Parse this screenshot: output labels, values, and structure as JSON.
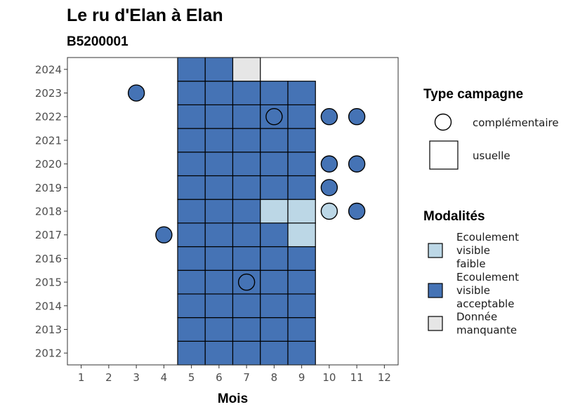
{
  "chart_data": {
    "type": "heatmap",
    "title": "Le ru d'Elan à Elan",
    "subtitle": "B5200001",
    "xlabel": "Mois",
    "ylabel": "",
    "x_ticks": [
      1,
      2,
      3,
      4,
      5,
      6,
      7,
      8,
      9,
      10,
      11,
      12
    ],
    "y_ticks": [
      2012,
      2013,
      2014,
      2015,
      2016,
      2017,
      2018,
      2019,
      2020,
      2021,
      2022,
      2023,
      2024
    ],
    "xlim": [
      0.5,
      12.5
    ],
    "ylim": [
      2011.5,
      2024.5
    ],
    "grid": false,
    "legend_position": "right",
    "colors": {
      "Ecoulement visible faible": "#bcd7e6",
      "Ecoulement visible acceptable": "#4573b5",
      "Donnée manquante": "#e6e6e6"
    },
    "legend": {
      "type_title": "Type campagne",
      "type_items": [
        {
          "label": "complémentaire",
          "shape": "circle"
        },
        {
          "label": "usuelle",
          "shape": "square"
        }
      ],
      "mod_title": "Modalités",
      "mod_items": [
        {
          "key": "Ecoulement visible faible",
          "lines": [
            "Ecoulement",
            "visible",
            "faible"
          ]
        },
        {
          "key": "Ecoulement visible acceptable",
          "lines": [
            "Ecoulement",
            "visible",
            "acceptable"
          ]
        },
        {
          "key": "Donnée manquante",
          "lines": [
            "Donnée",
            "manquante"
          ]
        }
      ]
    },
    "usuelle": [
      {
        "year": 2012,
        "month": 5,
        "modalite": "Ecoulement visible acceptable"
      },
      {
        "year": 2012,
        "month": 6,
        "modalite": "Ecoulement visible acceptable"
      },
      {
        "year": 2012,
        "month": 7,
        "modalite": "Ecoulement visible acceptable"
      },
      {
        "year": 2012,
        "month": 8,
        "modalite": "Ecoulement visible acceptable"
      },
      {
        "year": 2012,
        "month": 9,
        "modalite": "Ecoulement visible acceptable"
      },
      {
        "year": 2013,
        "month": 5,
        "modalite": "Ecoulement visible acceptable"
      },
      {
        "year": 2013,
        "month": 6,
        "modalite": "Ecoulement visible acceptable"
      },
      {
        "year": 2013,
        "month": 7,
        "modalite": "Ecoulement visible acceptable"
      },
      {
        "year": 2013,
        "month": 8,
        "modalite": "Ecoulement visible acceptable"
      },
      {
        "year": 2013,
        "month": 9,
        "modalite": "Ecoulement visible acceptable"
      },
      {
        "year": 2014,
        "month": 5,
        "modalite": "Ecoulement visible acceptable"
      },
      {
        "year": 2014,
        "month": 6,
        "modalite": "Ecoulement visible acceptable"
      },
      {
        "year": 2014,
        "month": 7,
        "modalite": "Ecoulement visible acceptable"
      },
      {
        "year": 2014,
        "month": 8,
        "modalite": "Ecoulement visible acceptable"
      },
      {
        "year": 2014,
        "month": 9,
        "modalite": "Ecoulement visible acceptable"
      },
      {
        "year": 2015,
        "month": 5,
        "modalite": "Ecoulement visible acceptable"
      },
      {
        "year": 2015,
        "month": 6,
        "modalite": "Ecoulement visible acceptable"
      },
      {
        "year": 2015,
        "month": 7,
        "modalite": "Ecoulement visible acceptable"
      },
      {
        "year": 2015,
        "month": 8,
        "modalite": "Ecoulement visible acceptable"
      },
      {
        "year": 2015,
        "month": 9,
        "modalite": "Ecoulement visible acceptable"
      },
      {
        "year": 2016,
        "month": 5,
        "modalite": "Ecoulement visible acceptable"
      },
      {
        "year": 2016,
        "month": 6,
        "modalite": "Ecoulement visible acceptable"
      },
      {
        "year": 2016,
        "month": 7,
        "modalite": "Ecoulement visible acceptable"
      },
      {
        "year": 2016,
        "month": 8,
        "modalite": "Ecoulement visible acceptable"
      },
      {
        "year": 2016,
        "month": 9,
        "modalite": "Ecoulement visible acceptable"
      },
      {
        "year": 2017,
        "month": 5,
        "modalite": "Ecoulement visible acceptable"
      },
      {
        "year": 2017,
        "month": 6,
        "modalite": "Ecoulement visible acceptable"
      },
      {
        "year": 2017,
        "month": 7,
        "modalite": "Ecoulement visible acceptable"
      },
      {
        "year": 2017,
        "month": 8,
        "modalite": "Ecoulement visible acceptable"
      },
      {
        "year": 2017,
        "month": 9,
        "modalite": "Ecoulement visible faible"
      },
      {
        "year": 2018,
        "month": 5,
        "modalite": "Ecoulement visible acceptable"
      },
      {
        "year": 2018,
        "month": 6,
        "modalite": "Ecoulement visible acceptable"
      },
      {
        "year": 2018,
        "month": 7,
        "modalite": "Ecoulement visible acceptable"
      },
      {
        "year": 2018,
        "month": 8,
        "modalite": "Ecoulement visible faible"
      },
      {
        "year": 2018,
        "month": 9,
        "modalite": "Ecoulement visible faible"
      },
      {
        "year": 2019,
        "month": 5,
        "modalite": "Ecoulement visible acceptable"
      },
      {
        "year": 2019,
        "month": 6,
        "modalite": "Ecoulement visible acceptable"
      },
      {
        "year": 2019,
        "month": 7,
        "modalite": "Ecoulement visible acceptable"
      },
      {
        "year": 2019,
        "month": 8,
        "modalite": "Ecoulement visible acceptable"
      },
      {
        "year": 2019,
        "month": 9,
        "modalite": "Ecoulement visible acceptable"
      },
      {
        "year": 2020,
        "month": 5,
        "modalite": "Ecoulement visible acceptable"
      },
      {
        "year": 2020,
        "month": 6,
        "modalite": "Ecoulement visible acceptable"
      },
      {
        "year": 2020,
        "month": 7,
        "modalite": "Ecoulement visible acceptable"
      },
      {
        "year": 2020,
        "month": 8,
        "modalite": "Ecoulement visible acceptable"
      },
      {
        "year": 2020,
        "month": 9,
        "modalite": "Ecoulement visible acceptable"
      },
      {
        "year": 2021,
        "month": 5,
        "modalite": "Ecoulement visible acceptable"
      },
      {
        "year": 2021,
        "month": 6,
        "modalite": "Ecoulement visible acceptable"
      },
      {
        "year": 2021,
        "month": 7,
        "modalite": "Ecoulement visible acceptable"
      },
      {
        "year": 2021,
        "month": 8,
        "modalite": "Ecoulement visible acceptable"
      },
      {
        "year": 2021,
        "month": 9,
        "modalite": "Ecoulement visible acceptable"
      },
      {
        "year": 2022,
        "month": 5,
        "modalite": "Ecoulement visible acceptable"
      },
      {
        "year": 2022,
        "month": 6,
        "modalite": "Ecoulement visible acceptable"
      },
      {
        "year": 2022,
        "month": 7,
        "modalite": "Ecoulement visible acceptable"
      },
      {
        "year": 2022,
        "month": 8,
        "modalite": "Ecoulement visible acceptable"
      },
      {
        "year": 2022,
        "month": 9,
        "modalite": "Ecoulement visible acceptable"
      },
      {
        "year": 2023,
        "month": 5,
        "modalite": "Ecoulement visible acceptable"
      },
      {
        "year": 2023,
        "month": 6,
        "modalite": "Ecoulement visible acceptable"
      },
      {
        "year": 2023,
        "month": 7,
        "modalite": "Ecoulement visible acceptable"
      },
      {
        "year": 2023,
        "month": 8,
        "modalite": "Ecoulement visible acceptable"
      },
      {
        "year": 2023,
        "month": 9,
        "modalite": "Ecoulement visible acceptable"
      },
      {
        "year": 2024,
        "month": 5,
        "modalite": "Ecoulement visible acceptable"
      },
      {
        "year": 2024,
        "month": 6,
        "modalite": "Ecoulement visible acceptable"
      },
      {
        "year": 2024,
        "month": 7,
        "modalite": "Donnée manquante"
      }
    ],
    "complementaire": [
      {
        "year": 2023,
        "month": 3,
        "modalite": "Ecoulement visible acceptable"
      },
      {
        "year": 2022,
        "month": 8,
        "modalite": "Ecoulement visible acceptable"
      },
      {
        "year": 2022,
        "month": 10,
        "modalite": "Ecoulement visible acceptable"
      },
      {
        "year": 2022,
        "month": 11,
        "modalite": "Ecoulement visible acceptable"
      },
      {
        "year": 2020,
        "month": 10,
        "modalite": "Ecoulement visible acceptable"
      },
      {
        "year": 2020,
        "month": 11,
        "modalite": "Ecoulement visible acceptable"
      },
      {
        "year": 2019,
        "month": 10,
        "modalite": "Ecoulement visible acceptable"
      },
      {
        "year": 2018,
        "month": 10,
        "modalite": "Ecoulement visible faible"
      },
      {
        "year": 2018,
        "month": 11,
        "modalite": "Ecoulement visible acceptable"
      },
      {
        "year": 2017,
        "month": 4,
        "modalite": "Ecoulement visible acceptable"
      },
      {
        "year": 2015,
        "month": 7,
        "modalite": "Ecoulement visible acceptable"
      }
    ]
  }
}
